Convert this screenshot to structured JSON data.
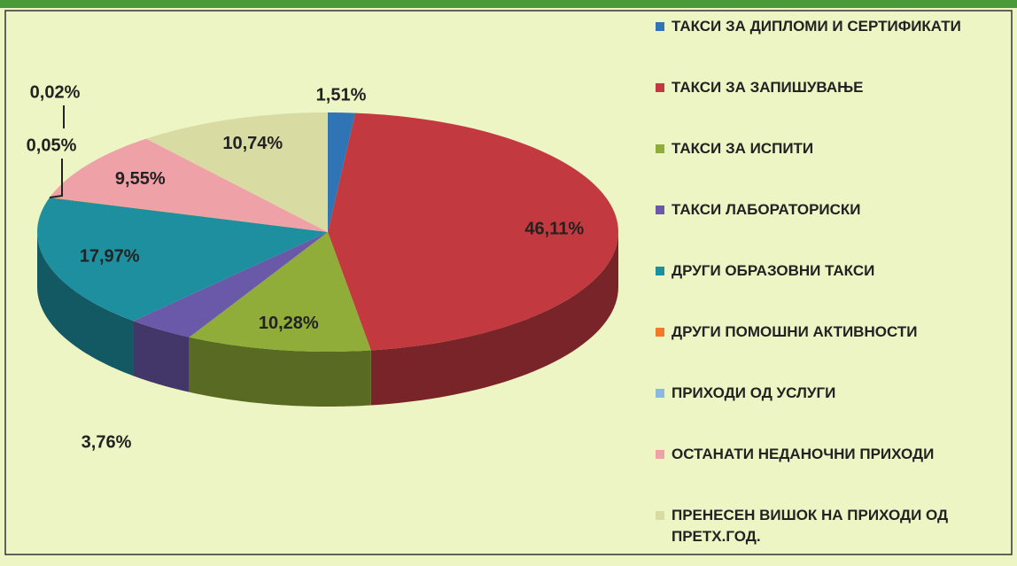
{
  "chart_data": {
    "type": "pie",
    "categories": [
      "ТАКСИ ЗА ДИПЛОМИ И СЕРТИФИКАТИ",
      "ТАКСИ ЗА ЗАПИШУВАЊЕ",
      "ТАКСИ ЗА ИСПИТИ",
      "ТАКСИ ЛАБОРАТОРИСКИ",
      "ДРУГИ ОБРАЗОВНИ ТАКСИ",
      "ДРУГИ ПОМОШНИ АКТИВНОСТИ",
      "ПРИХОДИ ОД УСЛУГИ",
      "ОСТАНАТИ НЕДАНОЧНИ ПРИХОДИ",
      "ПРЕНЕСЕН ВИШОК НА ПРИХОДИ ОД ПРЕТХ.ГОД."
    ],
    "values": [
      1.51,
      46.11,
      10.28,
      3.76,
      17.97,
      0.05,
      0.02,
      9.55,
      10.74
    ],
    "value_labels": [
      "1,51%",
      "46,11%",
      "10,28%",
      "3,76%",
      "17,97%",
      "0,05%",
      "0,02%",
      "9,55%",
      "10,74%"
    ],
    "colors": [
      "#2f74b5",
      "#c23a40",
      "#8fad38",
      "#6a58a8",
      "#1e8f9f",
      "#ef7a2c",
      "#8db8e2",
      "#efa1a8",
      "#d9dca2"
    ],
    "legend": "right"
  }
}
